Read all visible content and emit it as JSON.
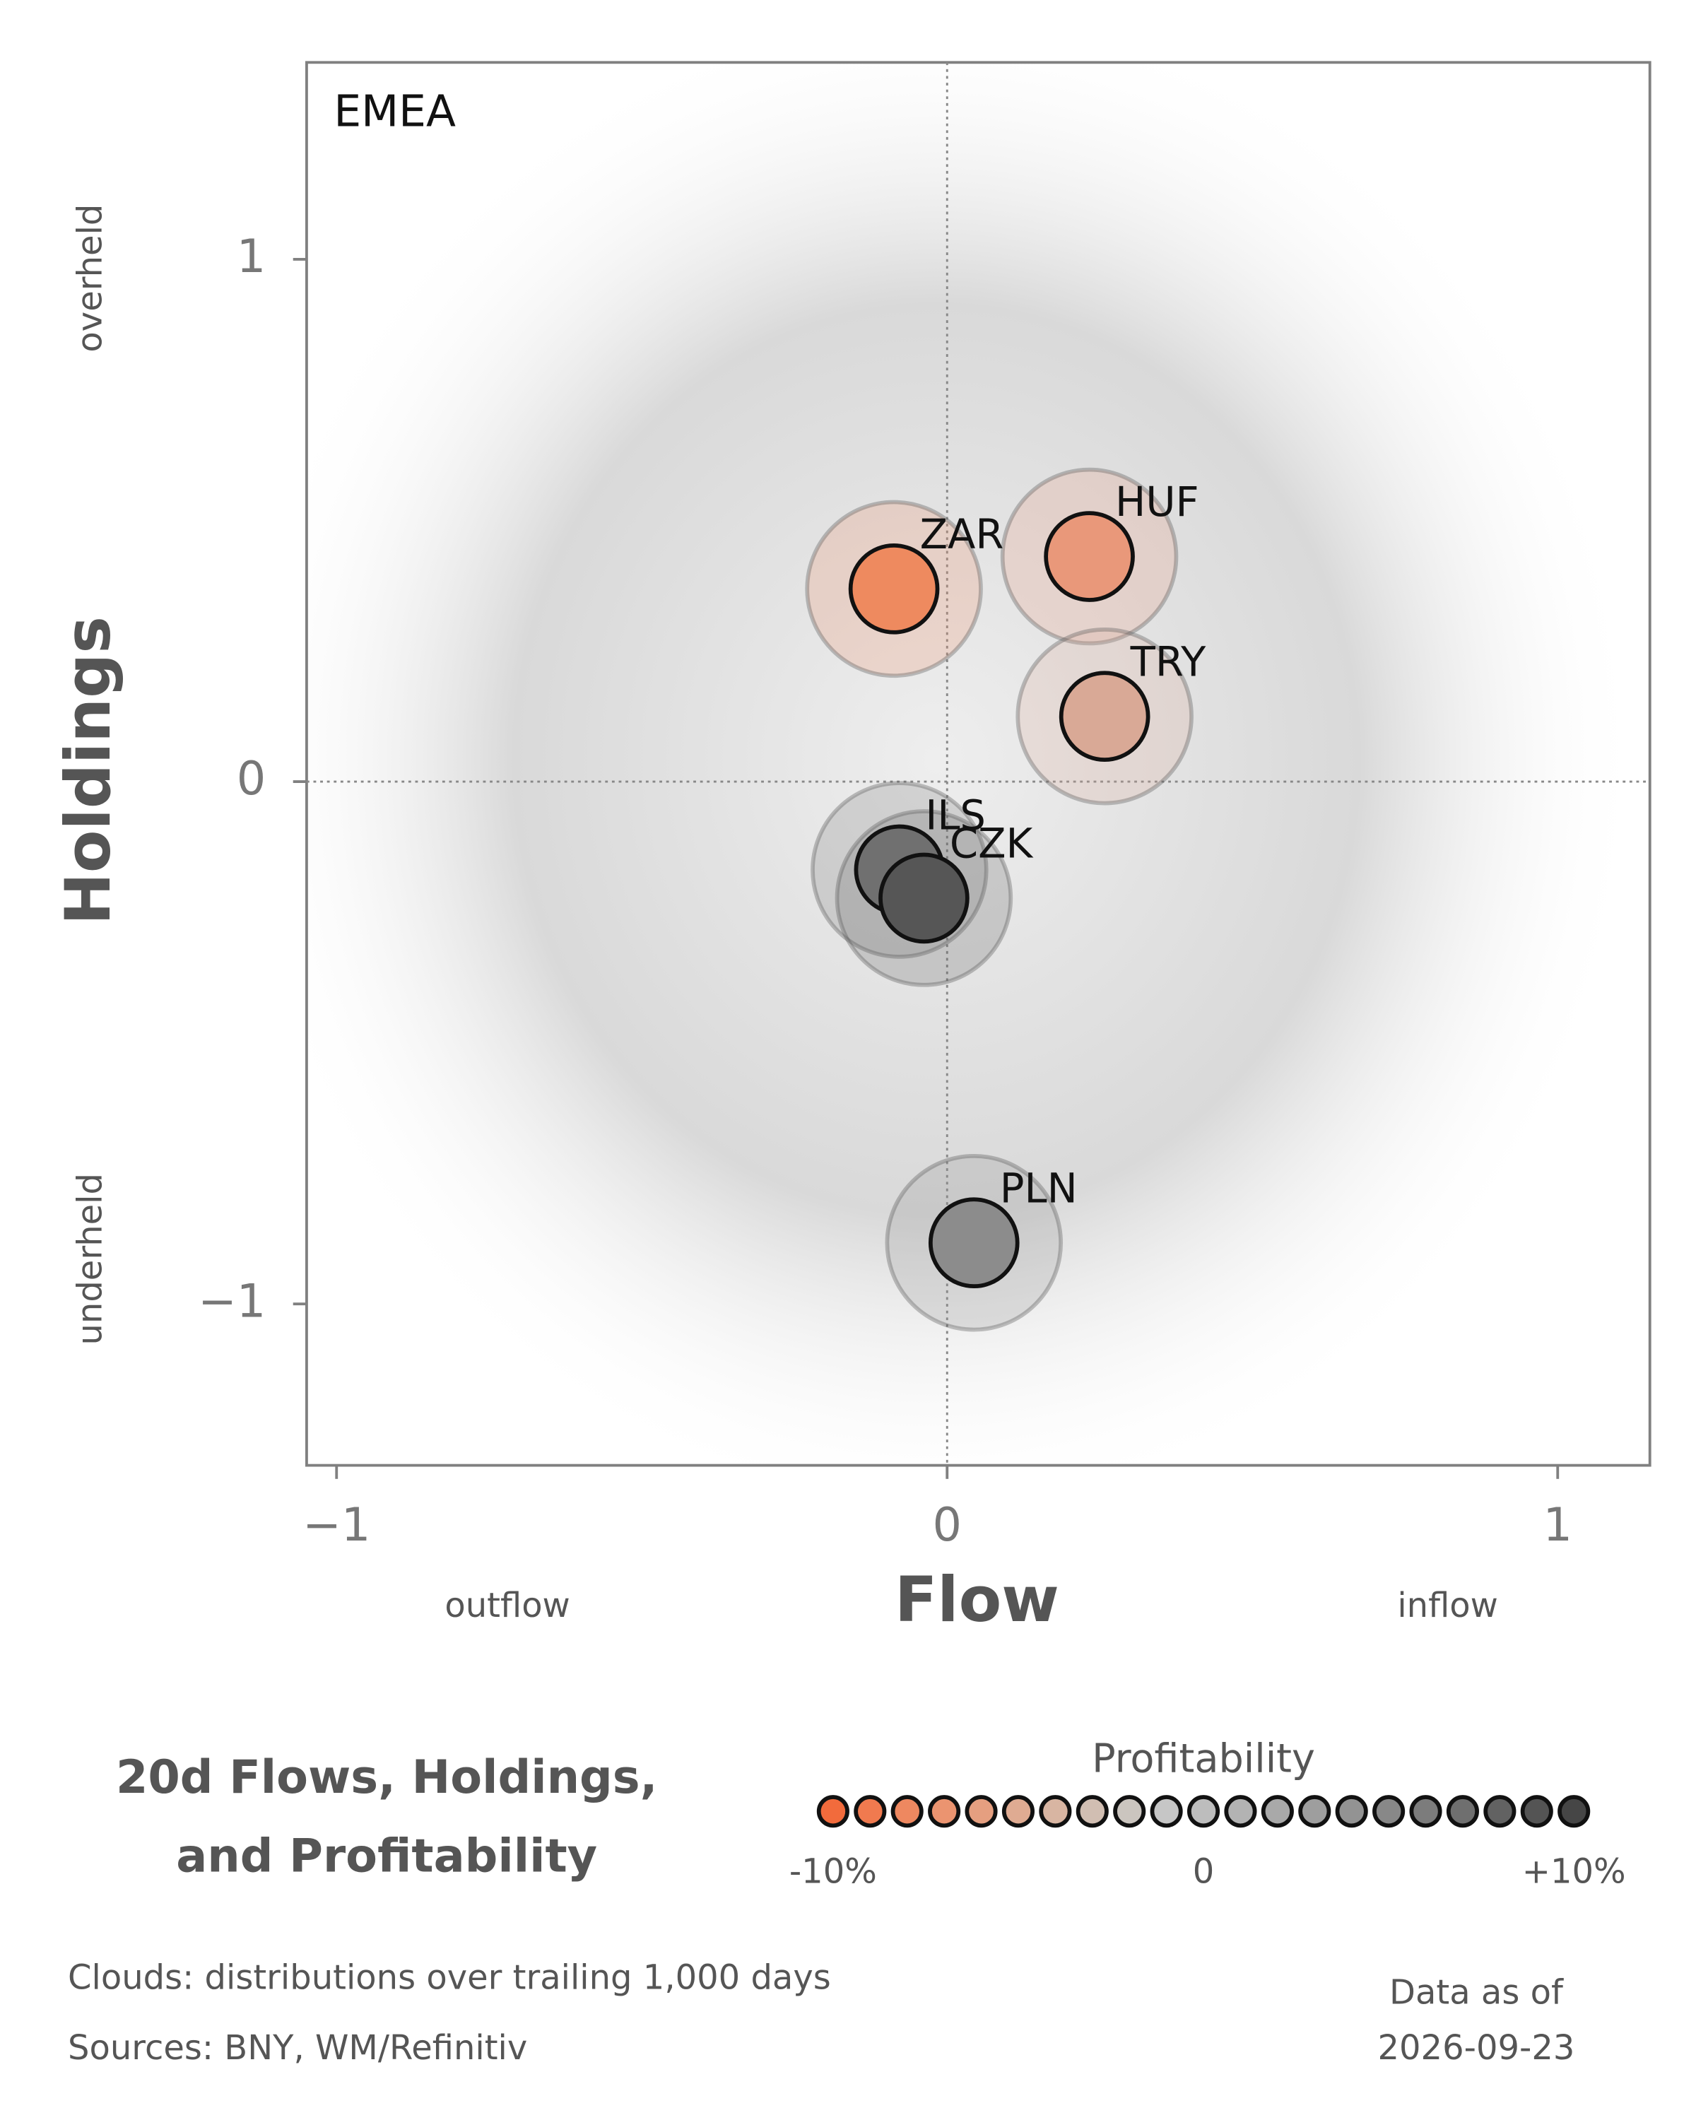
{
  "chart_data": {
    "type": "bubble",
    "panel_label": "EMEA",
    "title": [
      "20d Flows, Holdings,",
      "and Profitability"
    ],
    "x_label": "Flow",
    "y_label": "Holdings",
    "x_low_note": "outflow",
    "x_high_note": "inflow",
    "y_high_note": "overheld",
    "y_low_note": "underheld",
    "xlim": [
      -1.049,
      1.151
    ],
    "ylim": [
      -1.309,
      1.377
    ],
    "xticks": [
      {
        "value": -1,
        "label": "−1"
      },
      0,
      1
    ],
    "yticks": [
      {
        "value": -1,
        "label": "−1"
      },
      0,
      1
    ],
    "zero_lines": true,
    "series": [
      {
        "name": "ZAR",
        "color": "#ee8a5f",
        "x": [
          -0.087
        ],
        "values": [
          0.369
        ]
      },
      {
        "name": "HUF",
        "color": "#e9987a",
        "x": [
          0.233
        ],
        "values": [
          0.431
        ]
      },
      {
        "name": "TRY",
        "color": "#d9a996",
        "x": [
          0.258
        ],
        "values": [
          0.125
        ]
      },
      {
        "name": "ILS",
        "color": "#707070",
        "x": [
          -0.078
        ],
        "values": [
          -0.169
        ]
      },
      {
        "name": "CZK",
        "color": "#565656",
        "x": [
          -0.038
        ],
        "values": [
          -0.223
        ]
      },
      {
        "name": "PLN",
        "color": "#8c8c8c",
        "x": [
          0.044
        ],
        "values": [
          -0.883
        ]
      }
    ],
    "colorbar": {
      "title": "Profitability",
      "ticks": [
        {
          "value": -10,
          "label": "-10%"
        },
        0,
        {
          "value": 10,
          "label": "+10%"
        }
      ],
      "lim": [
        -10,
        10
      ],
      "colors": [
        "#f26b3c",
        "#f07a4f",
        "#ee8860",
        "#eb9470",
        "#e59f80",
        "#dfab92",
        "#d8b5a2",
        "#d1beb2",
        "#cbc5bf",
        "#c6c6c6",
        "#bdbdbd",
        "#b3b3b3",
        "#a9a9a9",
        "#9e9e9e",
        "#939393",
        "#888888",
        "#7c7c7c",
        "#6f6f6f",
        "#626262",
        "#545454",
        "#464646"
      ]
    },
    "footnotes": [
      "Clouds:  distributions over trailing 1,000 days",
      "Sources:  BNY, WM/Refinitiv"
    ],
    "asof_label": "Data as of",
    "asof_date": "2026-09-23"
  }
}
